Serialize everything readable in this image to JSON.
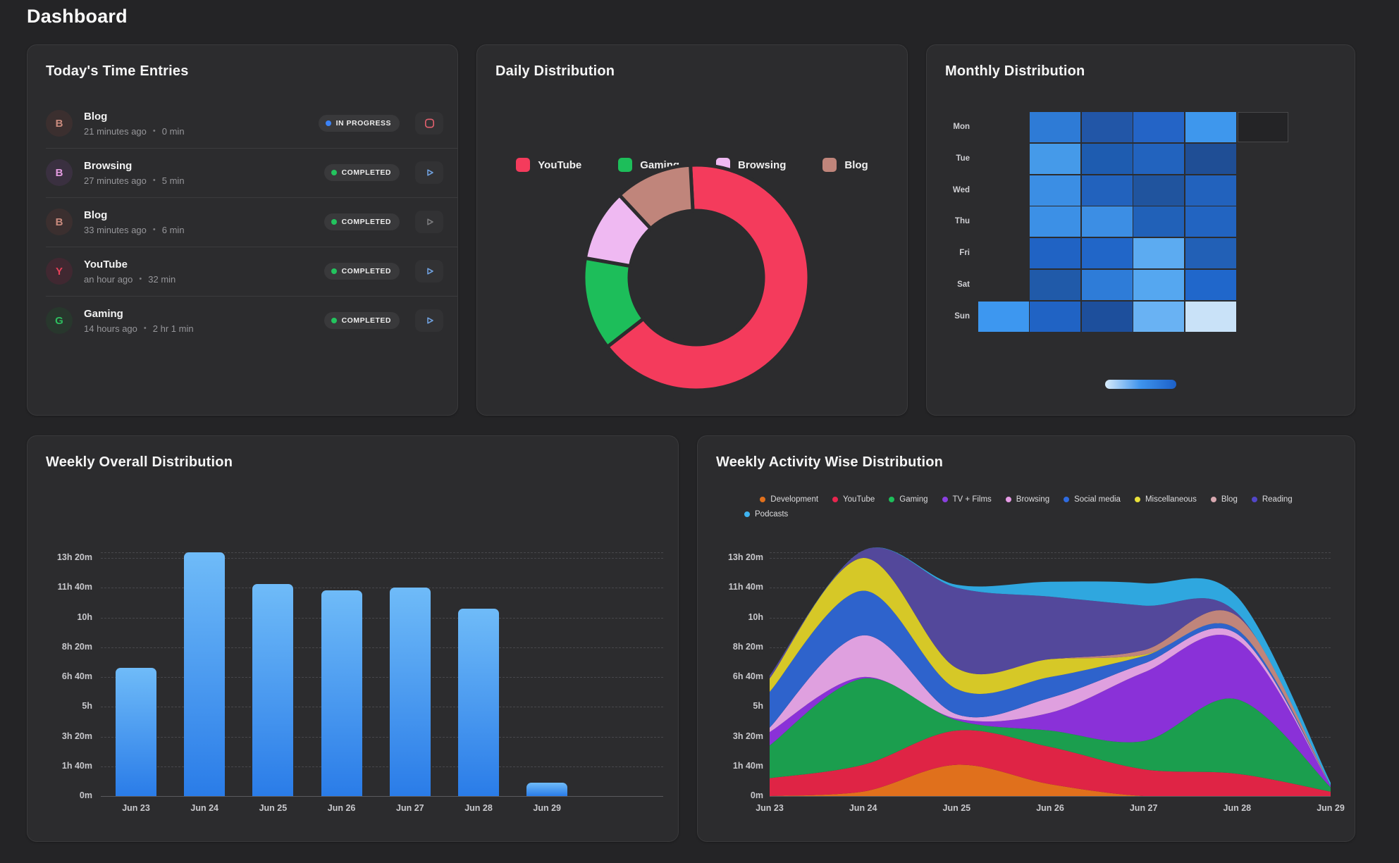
{
  "page": {
    "title": "Dashboard"
  },
  "entries_card": {
    "title": "Today's Time Entries",
    "separator": "•",
    "items": [
      {
        "name": "Blog",
        "time_ago": "21 minutes ago",
        "duration": "0 min",
        "status": "IN PROGRESS",
        "status_color": "#3B82F6",
        "avatar_letter": "B",
        "avatar_color": "#C98A7D",
        "avatar_bg": "#3B2F2F",
        "action": "stop",
        "action_color": "#E2606E"
      },
      {
        "name": "Browsing",
        "time_ago": "27 minutes ago",
        "duration": "5 min",
        "status": "COMPLETED",
        "status_color": "#23C45E",
        "avatar_letter": "B",
        "avatar_color": "#E39BE0",
        "avatar_bg": "#3A3040",
        "action": "play",
        "action_color": "#6F9FDC"
      },
      {
        "name": "Blog",
        "time_ago": "33 minutes ago",
        "duration": "6 min",
        "status": "COMPLETED",
        "status_color": "#23C45E",
        "avatar_letter": "B",
        "avatar_color": "#C98A7D",
        "avatar_bg": "#3B2F2F",
        "action": "play",
        "action_color": "#7A7A7C"
      },
      {
        "name": "YouTube",
        "time_ago": "an hour ago",
        "duration": "32 min",
        "status": "COMPLETED",
        "status_color": "#23C45E",
        "avatar_letter": "Y",
        "avatar_color": "#E84059",
        "avatar_bg": "#402831",
        "action": "play",
        "action_color": "#6F9FDC"
      },
      {
        "name": "Gaming",
        "time_ago": "14 hours ago",
        "duration": "2 hr 1 min",
        "status": "COMPLETED",
        "status_color": "#23C45E",
        "avatar_letter": "G",
        "avatar_color": "#2EBE5F",
        "avatar_bg": "#28372D",
        "action": "play",
        "action_color": "#6F9FDC"
      }
    ]
  },
  "daily_card": {
    "title": "Daily Distribution"
  },
  "monthly_card": {
    "title": "Monthly Distribution"
  },
  "bar_card": {
    "title": "Weekly Overall Distribution"
  },
  "area_card": {
    "title": "Weekly Activity Wise Distribution"
  },
  "chart_data": [
    {
      "id": "daily_donut",
      "type": "pie",
      "title": "Daily Distribution",
      "labels": [
        "YouTube",
        "Gaming",
        "Browsing",
        "Blog"
      ],
      "values_percent": [
        65.3,
        13.3,
        10.3,
        11.1
      ],
      "colors": [
        "#F43B5C",
        "#1DBE5A",
        "#EFB9F2",
        "#C0857B"
      ],
      "donut": true,
      "legend_position": "top"
    },
    {
      "id": "monthly_heatmap",
      "type": "heatmap",
      "title": "Monthly Distribution",
      "rows": [
        "Mon",
        "Tue",
        "Wed",
        "Thu",
        "Fri",
        "Sat",
        "Sun"
      ],
      "cells": [
        [
          null,
          "#2E7BD6",
          "#2256A7",
          "#2464C6",
          "#3E97ED",
          "empty"
        ],
        [
          null,
          "#459AE9",
          "#1E5CB0",
          "#2263BE",
          "#1F4E95",
          null
        ],
        [
          null,
          "#3B8EE4",
          "#2262BD",
          "#20549E",
          "#2262BD",
          null
        ],
        [
          null,
          "#3C90E6",
          "#3C8EE4",
          "#2161B8",
          "#2264C1",
          null
        ],
        [
          null,
          "#2063C4",
          "#2166C8",
          "#5CABF1",
          "#2260B6",
          null
        ],
        [
          null,
          "#205AA9",
          "#2E7CD8",
          "#55A7F0",
          "#2067CB",
          null
        ],
        [
          "#3D97F0",
          "#2063C4",
          "#1D4F9C",
          "#69B2F3",
          "#C9E2F8",
          null
        ]
      ],
      "colorscale": {
        "min_color": "#D8ECFB",
        "max_color": "#1C60C8"
      }
    },
    {
      "id": "weekly_bar",
      "type": "bar",
      "title": "Weekly Overall Distribution",
      "categories": [
        "Jun 23",
        "Jun 24",
        "Jun 25",
        "Jun 26",
        "Jun 27",
        "Jun 28",
        "Jun 29"
      ],
      "values_minutes": [
        430,
        820,
        712,
        690,
        700,
        630,
        45
      ],
      "y_tick_minutes": [
        0,
        100,
        200,
        300,
        400,
        500,
        600,
        700,
        800
      ],
      "y_tick_labels": [
        "0m",
        "1h 40m",
        "3h 20m",
        "5h",
        "6h 40m",
        "8h 20m",
        "10h",
        "11h 40m",
        "13h 20m"
      ],
      "y_max_minutes": 830,
      "grid": "dashed",
      "bar_gradient": [
        "#6FBBF8",
        "#2A7CE8"
      ]
    },
    {
      "id": "weekly_area",
      "type": "area",
      "stacked": true,
      "smooth": true,
      "title": "Weekly Activity Wise Distribution",
      "categories": [
        "Jun 23",
        "Jun 24",
        "Jun 25",
        "Jun 26",
        "Jun 27",
        "Jun 28",
        "Jun 29"
      ],
      "y_tick_minutes": [
        0,
        100,
        200,
        300,
        400,
        500,
        600,
        700,
        800
      ],
      "y_tick_labels": [
        "0m",
        "1h 40m",
        "3h 20m",
        "5h",
        "6h 40m",
        "8h 20m",
        "10h",
        "11h 40m",
        "13h 20m"
      ],
      "y_max_minutes": 830,
      "legend_rows": [
        [
          "Development",
          "YouTube",
          "Gaming",
          "TV + Films",
          "Browsing",
          "Social media",
          "Miscellaneous",
          "Blog",
          "Reading"
        ],
        [
          "Podcasts"
        ]
      ],
      "series": [
        {
          "name": "Development",
          "color": "#E0701C",
          "legend_color": "#E0701C",
          "values_minutes": [
            0,
            15,
            105,
            40,
            0,
            0,
            0
          ]
        },
        {
          "name": "YouTube",
          "color": "#DF2445",
          "legend_color": "#E8254E",
          "values_minutes": [
            60,
            90,
            115,
            125,
            90,
            75,
            15
          ]
        },
        {
          "name": "Gaming",
          "color": "#1B9E4E",
          "legend_color": "#1DBE5A",
          "values_minutes": [
            110,
            290,
            35,
            55,
            95,
            250,
            15
          ]
        },
        {
          "name": "TV + Films",
          "color": "#8A31D8",
          "legend_color": "#8A3FE0",
          "values_minutes": [
            45,
            5,
            5,
            60,
            230,
            200,
            5
          ]
        },
        {
          "name": "Browsing",
          "color": "#DFA0DF",
          "legend_color": "#E59BE5",
          "values_minutes": [
            15,
            140,
            15,
            50,
            30,
            20,
            0
          ]
        },
        {
          "name": "Social media",
          "color": "#2E63CC",
          "legend_color": "#2E6BE0",
          "values_minutes": [
            120,
            150,
            85,
            70,
            25,
            15,
            0
          ]
        },
        {
          "name": "Miscellaneous",
          "color": "#D6C827",
          "legend_color": "#E8E03A",
          "values_minutes": [
            45,
            110,
            70,
            60,
            5,
            0,
            0
          ]
        },
        {
          "name": "Blog",
          "color": "#C0857B",
          "legend_color": "#D8A8B0",
          "values_minutes": [
            0,
            0,
            0,
            0,
            15,
            45,
            0
          ]
        },
        {
          "name": "Reading",
          "color": "#53489B",
          "legend_color": "#5246C8",
          "values_minutes": [
            10,
            25,
            270,
            210,
            150,
            10,
            0
          ]
        },
        {
          "name": "Podcasts",
          "color": "#2FA7DF",
          "legend_color": "#3FB3F0",
          "values_minutes": [
            0,
            0,
            10,
            50,
            75,
            55,
            10
          ]
        }
      ]
    }
  ]
}
